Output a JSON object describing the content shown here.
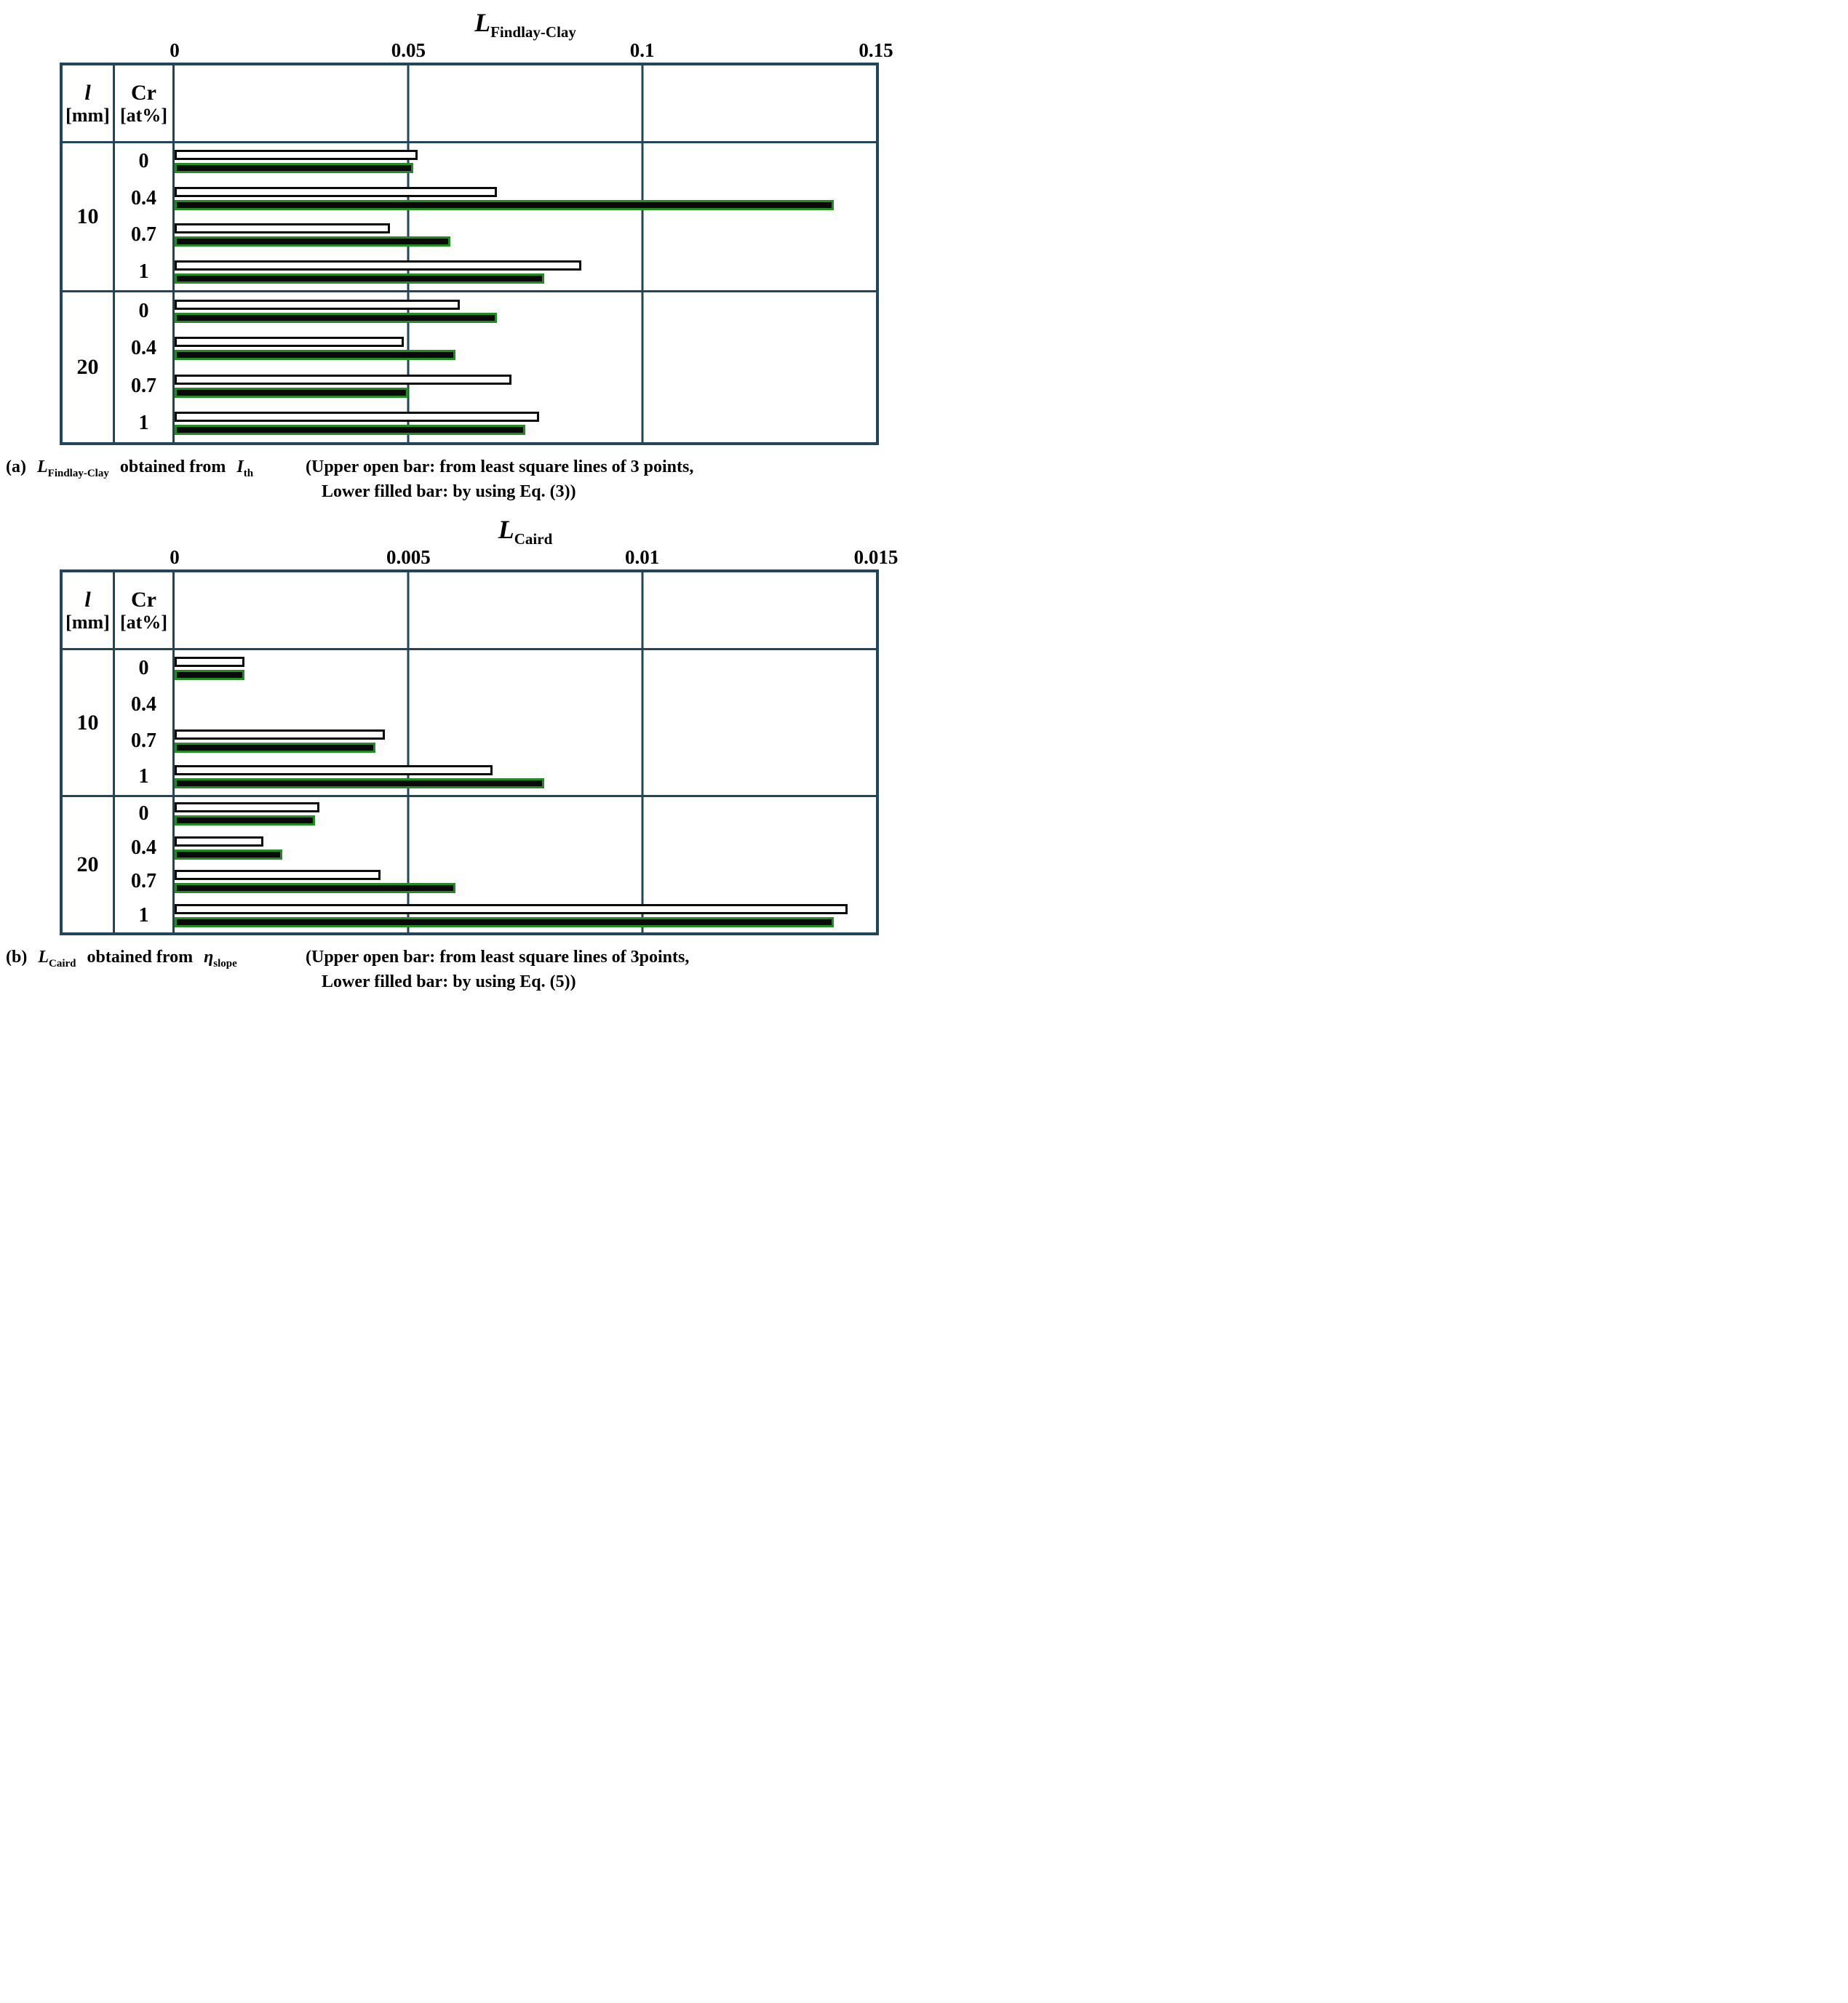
{
  "colors": {
    "table_border": "#21455a",
    "bar_open_border": "#0b0b0b",
    "bar_filled_fill": "#0a0a0a",
    "bar_filled_border": "#228B22",
    "text": "#000000",
    "background": "#ffffff"
  },
  "table_header": {
    "col1_line1": "l",
    "col1_line2": "[mm]",
    "col2_line1": "Cr",
    "col2_line2": "[at%]"
  },
  "chart_data": [
    {
      "type": "bar",
      "orientation": "horizontal",
      "panel": "a",
      "title": {
        "main": "L",
        "sub": "Findlay-Clay"
      },
      "axis": {
        "min": 0,
        "max": 0.15,
        "ticks": [
          {
            "v": 0,
            "label": "0"
          },
          {
            "v": 0.05,
            "label": "0.05"
          },
          {
            "v": 0.1,
            "label": "0.1"
          },
          {
            "v": 0.15,
            "label": "0.15"
          }
        ]
      },
      "bar_meaning": {
        "open": "from least square lines of 3 points",
        "filled": "by using Eq. (3)"
      },
      "groups": [
        {
          "l_mm": "10",
          "rows": [
            {
              "cr": "0",
              "open": 0.052,
              "filled": 0.051
            },
            {
              "cr": "0.4",
              "open": 0.069,
              "filled": 0.141
            },
            {
              "cr": "0.7",
              "open": 0.046,
              "filled": 0.059
            },
            {
              "cr": "1",
              "open": 0.087,
              "filled": 0.079
            }
          ]
        },
        {
          "l_mm": "20",
          "rows": [
            {
              "cr": "0",
              "open": 0.061,
              "filled": 0.069
            },
            {
              "cr": "0.4",
              "open": 0.049,
              "filled": 0.06
            },
            {
              "cr": "0.7",
              "open": 0.072,
              "filled": 0.05
            },
            {
              "cr": "1",
              "open": 0.078,
              "filled": 0.075
            }
          ]
        }
      ],
      "caption": {
        "prefix": "(a)",
        "sym": "L",
        "sym_sub": "Findlay-Clay",
        "mid": "obtained from",
        "src": "I",
        "src_sub": "th",
        "note_line1": "(Upper open bar: from least square lines of 3 points,",
        "note_line2": "Lower filled bar: by using Eq. (3))"
      }
    },
    {
      "type": "bar",
      "orientation": "horizontal",
      "panel": "b",
      "title": {
        "main": "L",
        "sub": "Caird"
      },
      "axis": {
        "min": 0,
        "max": 0.015,
        "ticks": [
          {
            "v": 0,
            "label": "0"
          },
          {
            "v": 0.005,
            "label": "0.005"
          },
          {
            "v": 0.01,
            "label": "0.01"
          },
          {
            "v": 0.015,
            "label": "0.015"
          }
        ]
      },
      "bar_meaning": {
        "open": "from least square lines of 3points",
        "filled": "by using Eq. (5)"
      },
      "groups": [
        {
          "l_mm": "10",
          "rows": [
            {
              "cr": "0",
              "open": 0.0015,
              "filled": 0.0015
            },
            {
              "cr": "0.4",
              "open": null,
              "filled": null
            },
            {
              "cr": "0.7",
              "open": 0.0045,
              "filled": 0.0043
            },
            {
              "cr": "1",
              "open": 0.0068,
              "filled": 0.0079
            }
          ]
        },
        {
          "l_mm": "20",
          "rows": [
            {
              "cr": "0",
              "open": 0.0031,
              "filled": 0.003
            },
            {
              "cr": "0.4",
              "open": 0.0019,
              "filled": 0.0023
            },
            {
              "cr": "0.7",
              "open": 0.0044,
              "filled": 0.006
            },
            {
              "cr": "1",
              "open": 0.0144,
              "filled": 0.0141
            }
          ]
        }
      ],
      "caption": {
        "prefix": "(b)",
        "sym": "L",
        "sym_sub": "Caird",
        "mid": "obtained from",
        "src": "η",
        "src_sub": "slope",
        "note_line1": "(Upper open bar: from least square lines of 3points,",
        "note_line2": "Lower filled bar: by using Eq. (5))"
      }
    }
  ]
}
